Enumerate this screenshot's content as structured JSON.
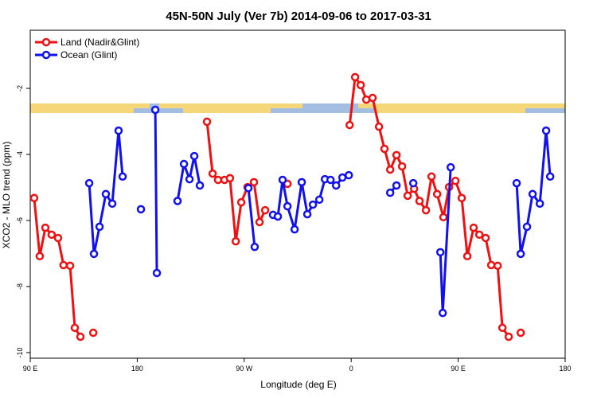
{
  "chart_data": {
    "type": "line",
    "title": "45N-50N July (Ver 7b)   2014-09-06 to 2017-03-31",
    "x_label": "Longitude (deg E)",
    "y_label": "XCO2 - MLO trend (ppm)",
    "xlim": [
      90,
      540
    ],
    "ylim": [
      -10.17,
      -0.24
    ],
    "xticks": [
      {
        "value": 90,
        "label": "90 E"
      },
      {
        "value": 180,
        "label": "180"
      },
      {
        "value": 270,
        "label": "90 W"
      },
      {
        "value": 360,
        "label": "0"
      },
      {
        "value": 450,
        "label": "90 E"
      },
      {
        "value": 540,
        "label": "180"
      }
    ],
    "yticks": [
      -2,
      -4,
      -6,
      -8,
      -10
    ],
    "legend": "top-left",
    "series": [
      {
        "name": "Land (Nadir&Glint)",
        "color": "#ee1111",
        "x": [
          93.3,
          98,
          102.7,
          108,
          113.4,
          118,
          123.5,
          127.5,
          132.2,
          null,
          143,
          null,
          238.7,
          243.4,
          248,
          253.4,
          258,
          262.9,
          267.5,
          272.8,
          278.2,
          282.9,
          287.6,
          null,
          306.4,
          null,
          358.7,
          363.3,
          368,
          372.7,
          378,
          383.4,
          388,
          392.8,
          398.1,
          402.8,
          407.5,
          412.9,
          417.5,
          422.9,
          427.6,
          432.3,
          437.6,
          442.3,
          447.7,
          453,
          457.7,
          463,
          467.8,
          473.1,
          477.8,
          483.2,
          487.2,
          492.5,
          null,
          502.6
        ],
        "values": [
          -5.32,
          -7.08,
          -6.22,
          -6.43,
          -6.53,
          -7.35,
          -7.37,
          -9.25,
          -9.52,
          null,
          -9.4,
          null,
          -3.01,
          -4.58,
          -4.77,
          -4.77,
          -4.72,
          -6.63,
          -5.45,
          -4.99,
          -4.84,
          -6.05,
          -5.69,
          null,
          -4.89,
          null,
          -3.11,
          -1.66,
          -1.9,
          -2.34,
          -2.29,
          -3.16,
          -3.83,
          -4.46,
          -4.02,
          -4.36,
          -5.25,
          -5.04,
          -5.41,
          -5.69,
          -4.67,
          -5.2,
          -5.9,
          -4.99,
          -4.8,
          -5.32,
          -7.08,
          -6.22,
          -6.43,
          -6.53,
          -7.35,
          -7.37,
          -9.25,
          -9.52,
          null,
          -9.4
        ]
      },
      {
        "name": "Ocean (Glint)",
        "color": "#1111ee",
        "x": [
          139.6,
          143.6,
          148.3,
          153.6,
          159,
          164.3,
          167.7,
          null,
          183.1,
          null,
          195.2,
          196.5,
          null,
          213.9,
          219.3,
          224,
          228,
          232.7,
          null,
          273.5,
          278.8,
          null,
          294.2,
          298.3,
          302.3,
          306.4,
          312.4,
          318.4,
          323.1,
          327.8,
          333.2,
          337.9,
          342.6,
          347.3,
          352.6,
          358,
          null,
          392.8,
          398.1,
          null,
          412.2,
          null,
          435,
          437,
          443.7,
          null,
          499.2,
          502.6,
          507.9,
          512.6,
          518.7,
          524,
          527.4
        ],
        "values": [
          -4.87,
          -7.01,
          -6.19,
          -5.2,
          -5.49,
          -3.28,
          -4.67,
          null,
          -5.66,
          null,
          -2.65,
          -7.59,
          null,
          -5.41,
          -4.29,
          -4.75,
          -4.05,
          -4.94,
          null,
          -5.02,
          -6.8,
          null,
          -5.83,
          -5.88,
          -4.77,
          -5.57,
          -6.27,
          -4.84,
          -5.81,
          -5.52,
          -5.37,
          -4.75,
          -4.77,
          -4.94,
          -4.7,
          -4.63,
          null,
          -5.16,
          -4.94,
          null,
          -4.87,
          null,
          -6.96,
          -8.8,
          -4.39,
          null,
          -4.87,
          -7.01,
          -6.19,
          -5.2,
          -5.49,
          -3.28,
          -4.67
        ]
      }
    ]
  }
}
